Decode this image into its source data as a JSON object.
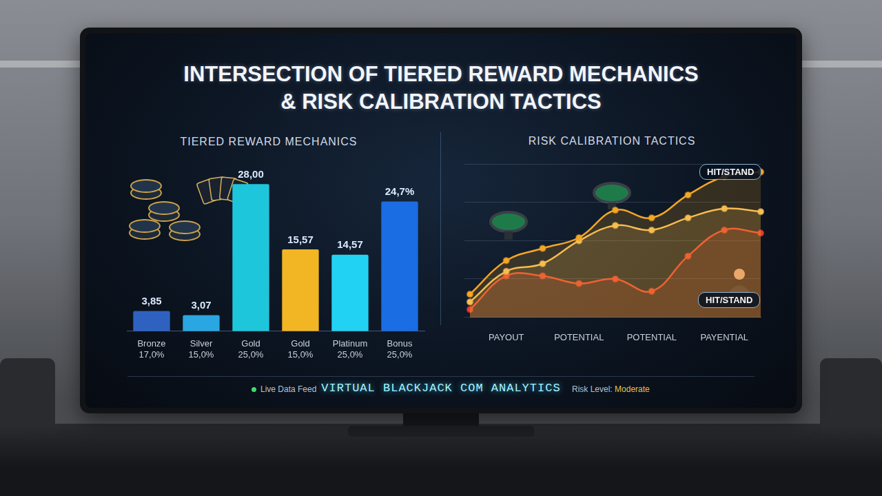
{
  "title": [
    "INTERSECTION OF TIERED REWARD MECHANICS",
    "& RISK CALIBRATION TACTICS"
  ],
  "chart_data": [
    {
      "type": "bar",
      "title": "TIERED REWARD MECHANICS",
      "categories": [
        [
          "Bronze",
          "17,0%"
        ],
        [
          "Silver",
          "15,0%"
        ],
        [
          "Gold",
          "25,0%"
        ],
        [
          "Gold",
          "15,0%"
        ],
        [
          "Platinum",
          "25,0%"
        ],
        [
          "Bonus",
          "25,0%"
        ]
      ],
      "values": [
        3.85,
        3.07,
        28.0,
        15.57,
        14.57,
        24.7
      ],
      "value_labels": [
        "3,85",
        "3,07",
        "28,00",
        "15,57",
        "14,57",
        "24,7%"
      ],
      "colors": [
        "#2f62c0",
        "#2aa6e2",
        "#1ec6dc",
        "#f2b524",
        "#22d2f2",
        "#1a6de2"
      ],
      "data_labels": true,
      "grid": false,
      "tick_labels": "x"
    },
    {
      "type": "line",
      "title": "RISK CALIBRATION TACTICS",
      "categories": [
        null,
        "PAYOUT",
        null,
        "POTENTIAL",
        null,
        "POTENTIAL",
        null,
        "PAYENTIAL",
        null
      ],
      "series": [
        {
          "color": "#f5a623",
          "values": [
            15,
            37,
            45,
            52,
            70,
            65,
            80,
            92,
            95
          ]
        },
        {
          "color": "#f7c25a",
          "values": [
            10,
            30,
            35,
            50,
            60,
            57,
            65,
            71,
            69
          ]
        },
        {
          "color": "#ec3b2e",
          "values": [
            5,
            27,
            27,
            22,
            25,
            17,
            40,
            57,
            55
          ]
        }
      ],
      "ylim": [
        0,
        100
      ],
      "yticks": [
        0,
        25,
        50,
        75,
        100
      ],
      "grid": true,
      "tick_labels": "x",
      "marker": "circle",
      "line_style": "solid",
      "annotations": [
        "HIT/STAND",
        "HIT/STAND"
      ]
    }
  ],
  "footer": {
    "status": "Live Data Feed",
    "brand": "VIRTUAL BLACKJACK COM ANALYTICS",
    "risk_label": "Risk Level:",
    "risk_value": "Moderate"
  }
}
